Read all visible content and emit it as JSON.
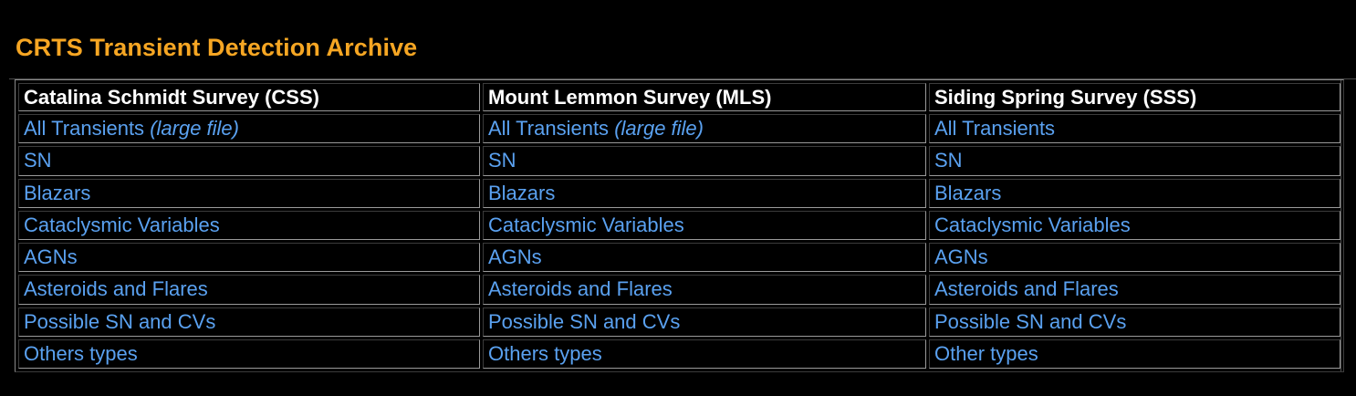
{
  "page": {
    "title": "CRTS Transient Detection Archive"
  },
  "colors": {
    "background": "#000000",
    "title": "#f6a623",
    "header_text": "#ffffff",
    "link": "#5aa1f0"
  },
  "table": {
    "columns": [
      {
        "header": "Catalina Schmidt Survey (CSS)",
        "links": [
          {
            "text": "All Transients",
            "note": "(large file)"
          },
          {
            "text": "SN",
            "note": ""
          },
          {
            "text": "Blazars",
            "note": ""
          },
          {
            "text": "Cataclysmic Variables",
            "note": ""
          },
          {
            "text": "AGNs",
            "note": ""
          },
          {
            "text": "Asteroids and Flares",
            "note": ""
          },
          {
            "text": "Possible SN and CVs",
            "note": ""
          },
          {
            "text": "Others types",
            "note": ""
          }
        ]
      },
      {
        "header": "Mount Lemmon Survey (MLS)",
        "links": [
          {
            "text": "All Transients",
            "note": "(large file)"
          },
          {
            "text": "SN",
            "note": ""
          },
          {
            "text": "Blazars",
            "note": ""
          },
          {
            "text": "Cataclysmic Variables",
            "note": ""
          },
          {
            "text": "AGNs",
            "note": ""
          },
          {
            "text": "Asteroids and Flares",
            "note": ""
          },
          {
            "text": "Possible SN and CVs",
            "note": ""
          },
          {
            "text": "Others types",
            "note": ""
          }
        ]
      },
      {
        "header": "Siding Spring Survey (SSS)",
        "links": [
          {
            "text": "All Transients",
            "note": ""
          },
          {
            "text": "SN",
            "note": ""
          },
          {
            "text": "Blazars",
            "note": ""
          },
          {
            "text": "Cataclysmic Variables",
            "note": ""
          },
          {
            "text": "AGNs",
            "note": ""
          },
          {
            "text": "Asteroids and Flares",
            "note": ""
          },
          {
            "text": "Possible SN and CVs",
            "note": ""
          },
          {
            "text": "Other types",
            "note": ""
          }
        ]
      }
    ]
  }
}
